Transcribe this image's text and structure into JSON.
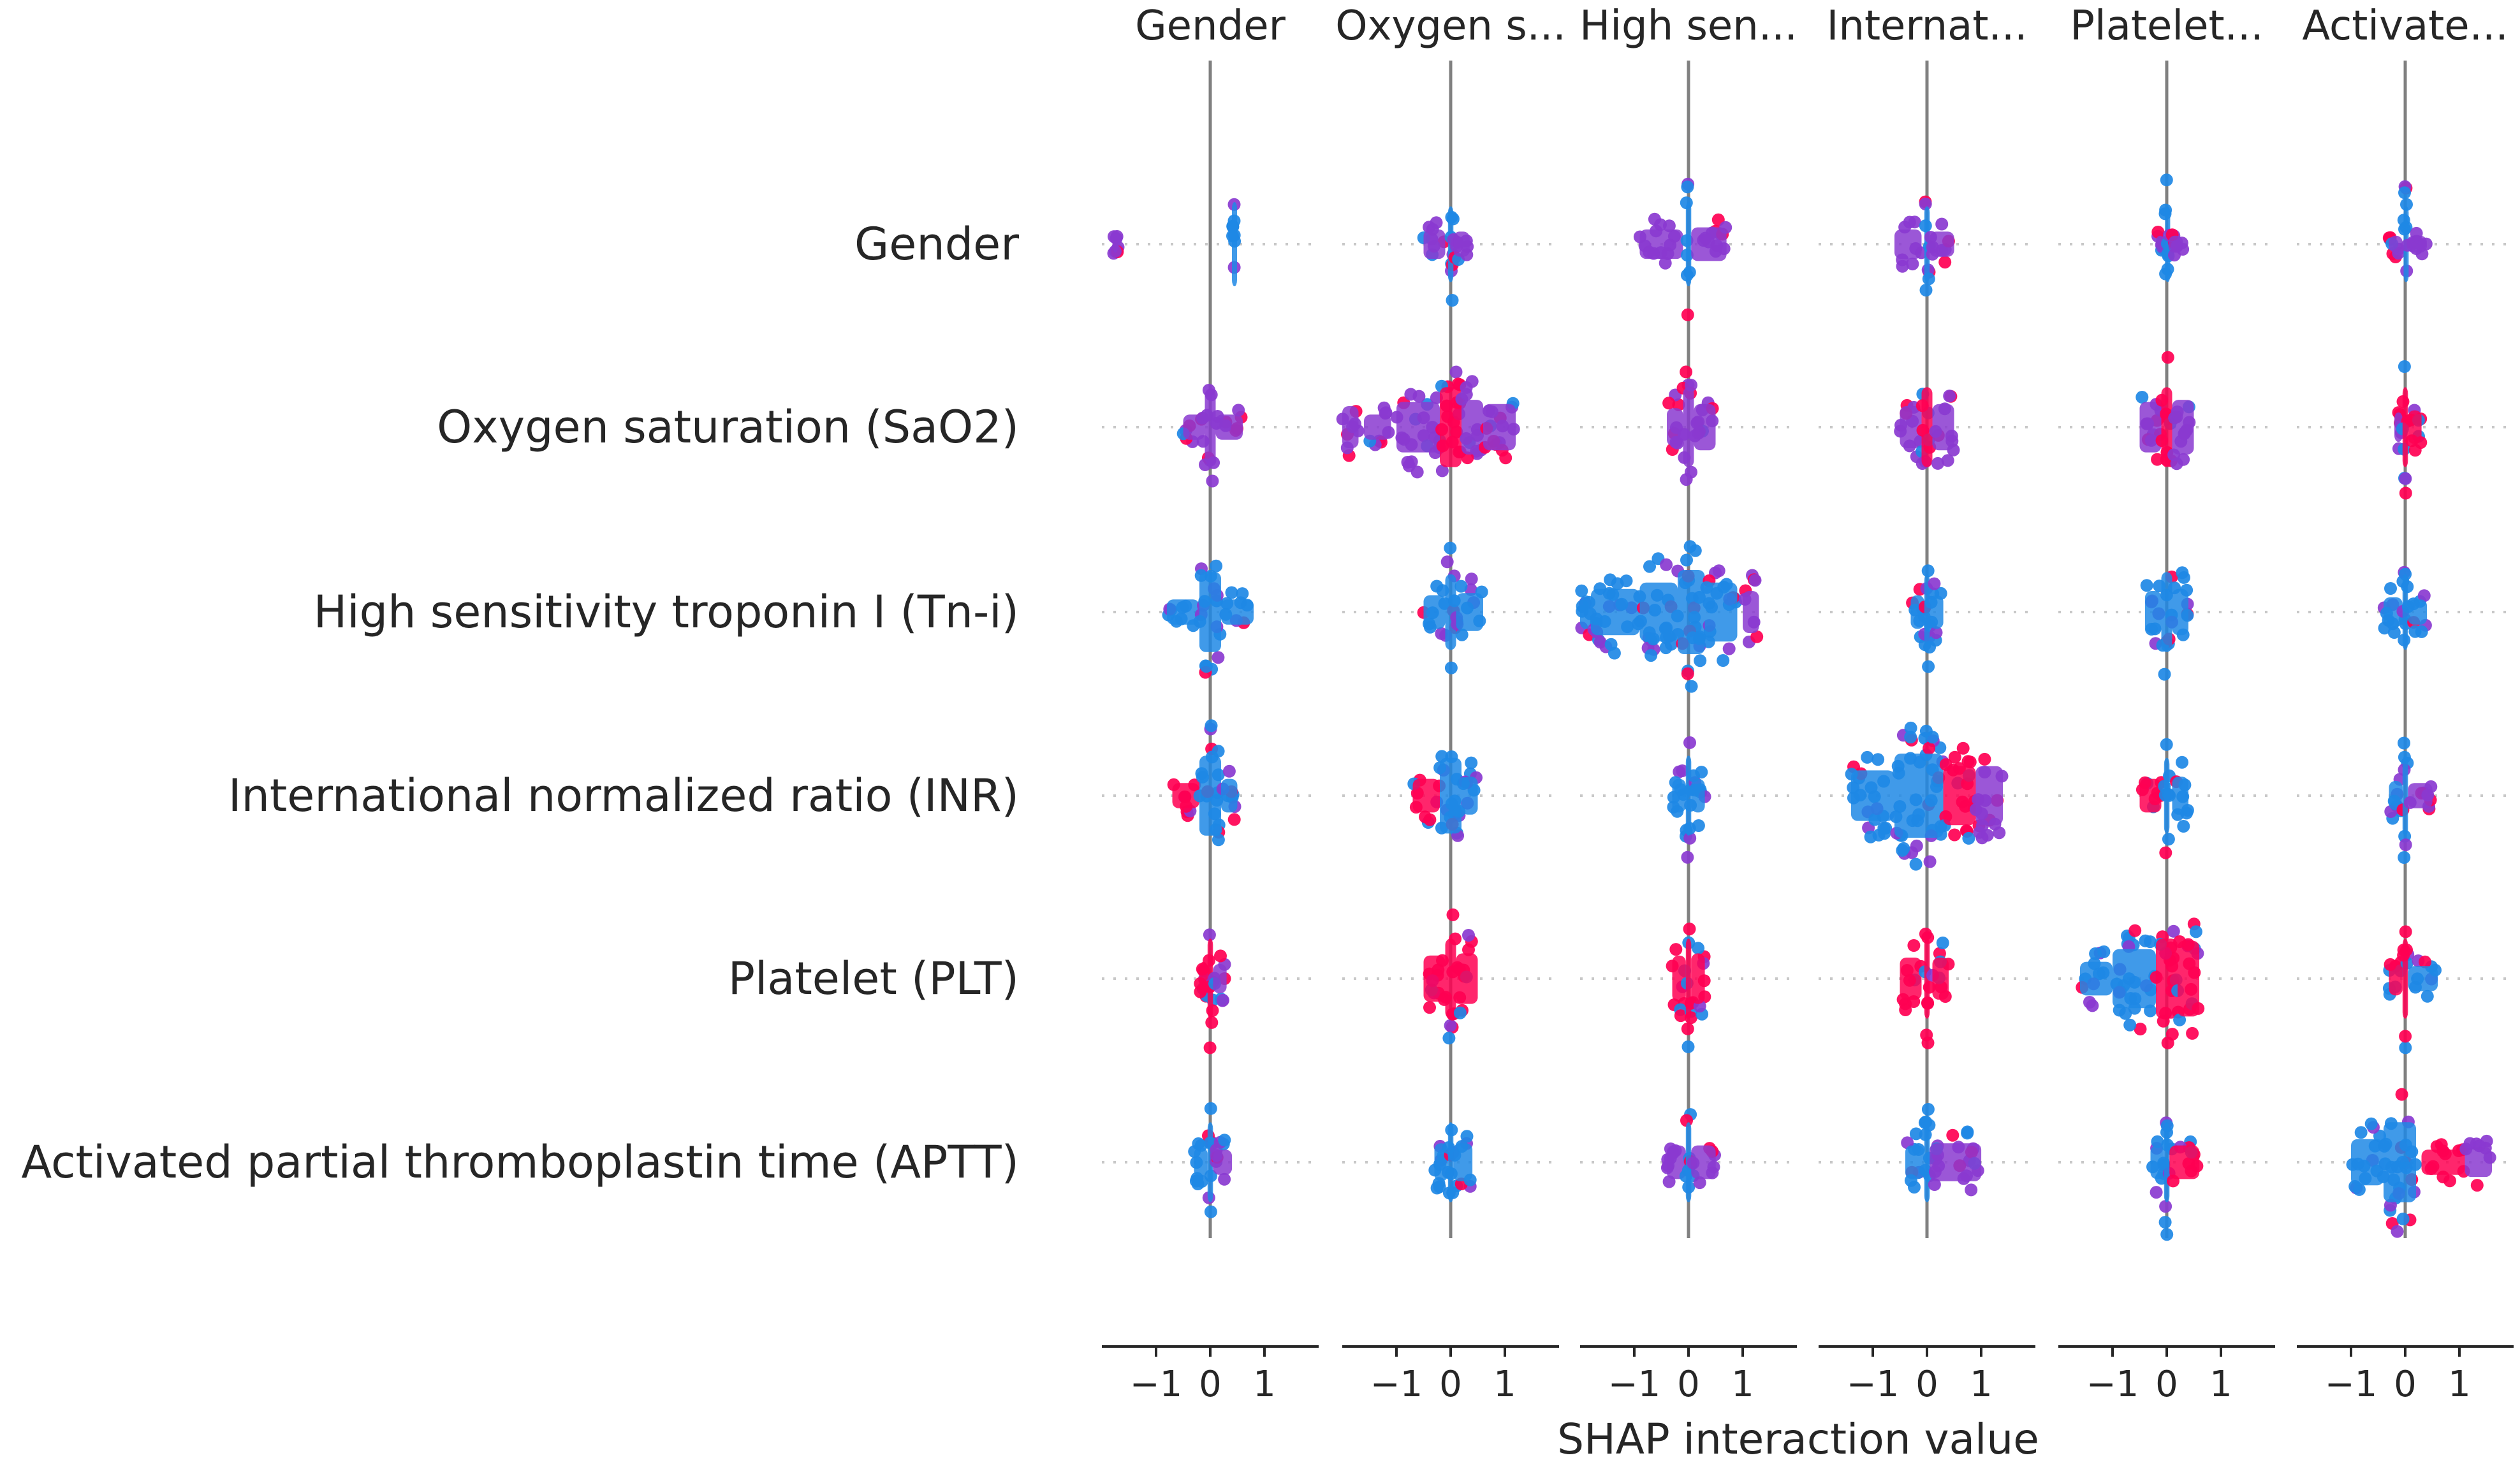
{
  "chart_data": {
    "type": "scatter",
    "subtype": "shap-interaction-beeswarm-grid",
    "xlabel": "SHAP interaction value",
    "xlim": [
      -2.0,
      2.0
    ],
    "xticks": [
      -1,
      0,
      1
    ],
    "xtick_labels": [
      "−1",
      "0",
      "1"
    ],
    "features": [
      "Gender",
      "Oxygen saturation (SaO2)",
      "High sensitivity troponin I (Tn-i)",
      "International normalized ratio (INR)",
      "Platelet (PLT)",
      "Activated partial thromboplastin time (APTT)"
    ],
    "column_titles": [
      "Gender",
      "Oxygen s...",
      "High sen...",
      "Internat...",
      "Platelet...",
      "Activate..."
    ],
    "colors": {
      "low": "#1e88e5",
      "mid": "#8a3ad0",
      "high": "#ff0052"
    },
    "cells": [
      [
        {
          "blobs": [
            [
              -1.8,
              -1.7,
              0.2,
              1
            ],
            [
              0.4,
              0.45,
              1.0,
              0
            ]
          ]
        },
        {
          "blobs": [
            [
              -0.5,
              -0.1,
              0.35,
              1
            ],
            [
              -0.05,
              0.05,
              0.9,
              0
            ],
            [
              0.05,
              0.35,
              0.3,
              1
            ]
          ]
        },
        {
          "blobs": [
            [
              -0.9,
              -0.1,
              0.35,
              1
            ],
            [
              -0.05,
              0.05,
              1.0,
              0
            ],
            [
              0.05,
              0.7,
              0.4,
              1
            ]
          ]
        },
        {
          "blobs": [
            [
              -0.6,
              -0.1,
              0.35,
              1
            ],
            [
              -0.05,
              0.05,
              0.9,
              0
            ],
            [
              0.05,
              0.5,
              0.3,
              1
            ]
          ]
        },
        {
          "blobs": [
            [
              -0.2,
              -0.05,
              0.2,
              1
            ],
            [
              -0.03,
              0.03,
              0.9,
              0
            ],
            [
              0.03,
              0.3,
              0.2,
              1
            ]
          ]
        },
        {
          "blobs": [
            [
              -0.3,
              -0.05,
              0.2,
              1
            ],
            [
              -0.03,
              0.03,
              0.9,
              0
            ],
            [
              0.03,
              0.4,
              0.2,
              1
            ]
          ]
        }
      ],
      [
        {
          "blobs": [
            [
              -0.5,
              -0.1,
              0.3,
              1
            ],
            [
              -0.1,
              0.1,
              0.9,
              1
            ],
            [
              0.1,
              0.6,
              0.3,
              1
            ]
          ]
        },
        {
          "blobs": [
            [
              -2.0,
              -1.7,
              0.5,
              1
            ],
            [
              -1.6,
              -1.1,
              0.3,
              1
            ],
            [
              -1.0,
              -0.2,
              0.6,
              1
            ],
            [
              -0.2,
              0.2,
              0.95,
              2
            ],
            [
              0.2,
              0.6,
              0.65,
              1
            ],
            [
              0.6,
              1.2,
              0.55,
              1
            ]
          ]
        },
        {
          "blobs": [
            [
              -0.4,
              -0.1,
              0.45,
              1
            ],
            [
              -0.1,
              0.1,
              0.95,
              1
            ],
            [
              0.1,
              0.5,
              0.55,
              1
            ]
          ]
        },
        {
          "blobs": [
            [
              -0.5,
              -0.1,
              0.5,
              1
            ],
            [
              -0.1,
              0.1,
              0.95,
              2
            ],
            [
              0.1,
              0.5,
              0.55,
              1
            ]
          ]
        },
        {
          "blobs": [
            [
              -0.5,
              -0.1,
              0.6,
              1
            ],
            [
              -0.1,
              0.1,
              0.95,
              2
            ],
            [
              0.1,
              0.5,
              0.65,
              1
            ]
          ]
        },
        {
          "blobs": [
            [
              -0.2,
              -0.05,
              0.35,
              1
            ],
            [
              -0.05,
              0.05,
              0.95,
              2
            ],
            [
              0.05,
              0.3,
              0.4,
              2
            ]
          ]
        }
      ],
      [
        {
          "blobs": [
            [
              -0.8,
              -0.2,
              0.3,
              0
            ],
            [
              -0.2,
              0.2,
              0.95,
              0
            ],
            [
              0.2,
              0.8,
              0.3,
              0
            ]
          ]
        },
        {
          "blobs": [
            [
              -0.5,
              -0.1,
              0.4,
              0
            ],
            [
              -0.1,
              0.1,
              0.9,
              0
            ],
            [
              0.1,
              0.6,
              0.45,
              0
            ]
          ]
        },
        {
          "blobs": [
            [
              -2.0,
              -1.8,
              0.4,
              0
            ],
            [
              -1.8,
              -0.9,
              0.55,
              0
            ],
            [
              -0.9,
              -0.2,
              0.7,
              0
            ],
            [
              -0.2,
              0.3,
              1.0,
              0
            ],
            [
              0.3,
              0.9,
              0.7,
              0
            ],
            [
              1.0,
              1.3,
              0.5,
              1
            ]
          ]
        },
        {
          "blobs": [
            [
              -0.3,
              -0.05,
              0.4,
              0
            ],
            [
              -0.05,
              0.05,
              0.9,
              0
            ],
            [
              0.05,
              0.3,
              0.4,
              0
            ]
          ]
        },
        {
          "blobs": [
            [
              -0.4,
              -0.1,
              0.5,
              0
            ],
            [
              -0.1,
              0.1,
              0.95,
              0
            ],
            [
              0.1,
              0.4,
              0.55,
              0
            ]
          ]
        },
        {
          "blobs": [
            [
              -0.4,
              -0.05,
              0.35,
              0
            ],
            [
              -0.05,
              0.05,
              0.9,
              0
            ],
            [
              0.05,
              0.4,
              0.3,
              0
            ]
          ]
        }
      ],
      [
        {
          "blobs": [
            [
              -0.7,
              -0.2,
              0.3,
              2
            ],
            [
              -0.2,
              0.2,
              0.95,
              0
            ],
            [
              0.2,
              0.5,
              0.4,
              0
            ]
          ]
        },
        {
          "blobs": [
            [
              -0.7,
              -0.2,
              0.4,
              2
            ],
            [
              -0.2,
              0.2,
              0.9,
              0
            ],
            [
              0.2,
              0.5,
              0.45,
              0
            ]
          ]
        },
        {
          "blobs": [
            [
              -0.3,
              -0.05,
              0.4,
              0
            ],
            [
              -0.05,
              0.05,
              0.95,
              0
            ],
            [
              0.05,
              0.3,
              0.4,
              0
            ]
          ]
        },
        {
          "blobs": [
            [
              -1.4,
              -0.6,
              0.6,
              0
            ],
            [
              -0.6,
              0.3,
              1.0,
              0
            ],
            [
              0.3,
              0.9,
              0.7,
              2
            ],
            [
              0.9,
              1.4,
              0.7,
              1
            ]
          ]
        },
        {
          "blobs": [
            [
              -0.5,
              -0.1,
              0.4,
              2
            ],
            [
              -0.05,
              0.05,
              0.9,
              0
            ],
            [
              0.1,
              0.4,
              0.45,
              0
            ]
          ]
        },
        {
          "blobs": [
            [
              -0.3,
              -0.05,
              0.35,
              0
            ],
            [
              -0.05,
              0.05,
              0.95,
              0
            ],
            [
              0.05,
              0.5,
              0.3,
              1
            ]
          ]
        }
      ],
      [
        {
          "blobs": [
            [
              -0.2,
              -0.05,
              0.4,
              2
            ],
            [
              -0.05,
              0.05,
              0.95,
              2
            ],
            [
              0.05,
              0.3,
              0.35,
              1
            ]
          ]
        },
        {
          "blobs": [
            [
              -0.5,
              -0.1,
              0.55,
              2
            ],
            [
              -0.1,
              0.1,
              0.95,
              2
            ],
            [
              0.1,
              0.5,
              0.6,
              2
            ]
          ]
        },
        {
          "blobs": [
            [
              -0.3,
              -0.05,
              0.55,
              2
            ],
            [
              -0.05,
              0.05,
              0.95,
              2
            ],
            [
              0.05,
              0.3,
              0.6,
              2
            ]
          ]
        },
        {
          "blobs": [
            [
              -0.5,
              -0.1,
              0.5,
              2
            ],
            [
              -0.05,
              0.05,
              0.95,
              2
            ],
            [
              0.1,
              0.4,
              0.5,
              2
            ]
          ]
        },
        {
          "blobs": [
            [
              -1.6,
              -1.0,
              0.4,
              0
            ],
            [
              -1.0,
              -0.2,
              0.7,
              0
            ],
            [
              -0.2,
              0.2,
              0.95,
              2
            ],
            [
              0.2,
              0.6,
              0.9,
              2
            ]
          ]
        },
        {
          "blobs": [
            [
              -0.3,
              -0.05,
              0.4,
              2
            ],
            [
              -0.05,
              0.05,
              0.95,
              2
            ],
            [
              0.05,
              0.6,
              0.3,
              0
            ]
          ]
        }
      ],
      [
        {
          "blobs": [
            [
              -0.3,
              -0.05,
              0.35,
              0
            ],
            [
              -0.05,
              0.05,
              0.95,
              0
            ],
            [
              0.05,
              0.4,
              0.3,
              1
            ]
          ]
        },
        {
          "blobs": [
            [
              -0.3,
              -0.05,
              0.45,
              0
            ],
            [
              -0.05,
              0.05,
              0.95,
              0
            ],
            [
              0.05,
              0.4,
              0.45,
              0
            ]
          ]
        },
        {
          "blobs": [
            [
              -0.4,
              -0.05,
              0.4,
              1
            ],
            [
              -0.05,
              0.05,
              0.95,
              0
            ],
            [
              0.05,
              0.5,
              0.4,
              1
            ]
          ]
        },
        {
          "blobs": [
            [
              -0.4,
              -0.05,
              0.4,
              0
            ],
            [
              -0.05,
              0.05,
              0.95,
              0
            ],
            [
              0.05,
              1.0,
              0.45,
              1
            ]
          ]
        },
        {
          "blobs": [
            [
              -0.3,
              -0.05,
              0.4,
              0
            ],
            [
              -0.05,
              0.05,
              0.95,
              0
            ],
            [
              0.05,
              0.6,
              0.4,
              2
            ]
          ]
        },
        {
          "blobs": [
            [
              -1.0,
              -0.4,
              0.55,
              0
            ],
            [
              -0.4,
              0.2,
              0.95,
              0
            ],
            [
              0.3,
              1.1,
              0.3,
              2
            ],
            [
              1.1,
              1.6,
              0.35,
              1
            ]
          ]
        }
      ]
    ]
  }
}
